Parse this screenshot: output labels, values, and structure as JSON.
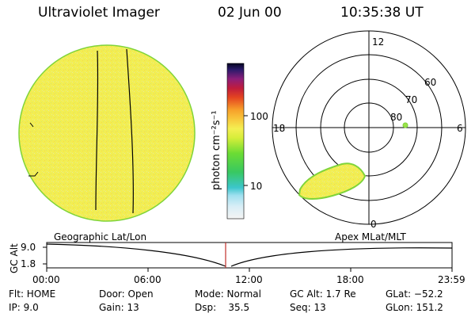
{
  "header": {
    "title": "Ultraviolet Imager",
    "date": "02 Jun 00",
    "time": "10:35:38 UT"
  },
  "colorbar": {
    "unit_label": "photon cm⁻²s⁻¹",
    "ticks": [
      "100",
      "10"
    ]
  },
  "polar_plot": {
    "labels": {
      "top": "12",
      "bottom": "0",
      "left": "18",
      "right": "6",
      "lat60": "60",
      "lat70": "70",
      "lat80": "80"
    }
  },
  "timeline": {
    "left_caption": "Geographic Lat/Lon",
    "right_caption": "Apex MLat/MLT",
    "y_axis_label": "GC Alt",
    "y_ticks": [
      "9.0",
      "1.8"
    ],
    "x_ticks": [
      "00:00",
      "06:00",
      "12:00",
      "18:00",
      "23:59"
    ]
  },
  "status": {
    "flt": "Flt: HOME",
    "ip": "IP:  9.0",
    "door": "Door: Open",
    "gain": "Gain: 13",
    "mode": "Mode: Normal",
    "dsp": "Dsp:    35.5",
    "gc_alt": "GC Alt: 1.7 Re",
    "seq": "Seq: 13",
    "glat": "GLat: −52.2",
    "glon": "GLon: 151.2"
  },
  "colors": {
    "disk_fill": "#f2ee52",
    "disk_edge": "#7fd43a",
    "marker": "#c0302a"
  }
}
